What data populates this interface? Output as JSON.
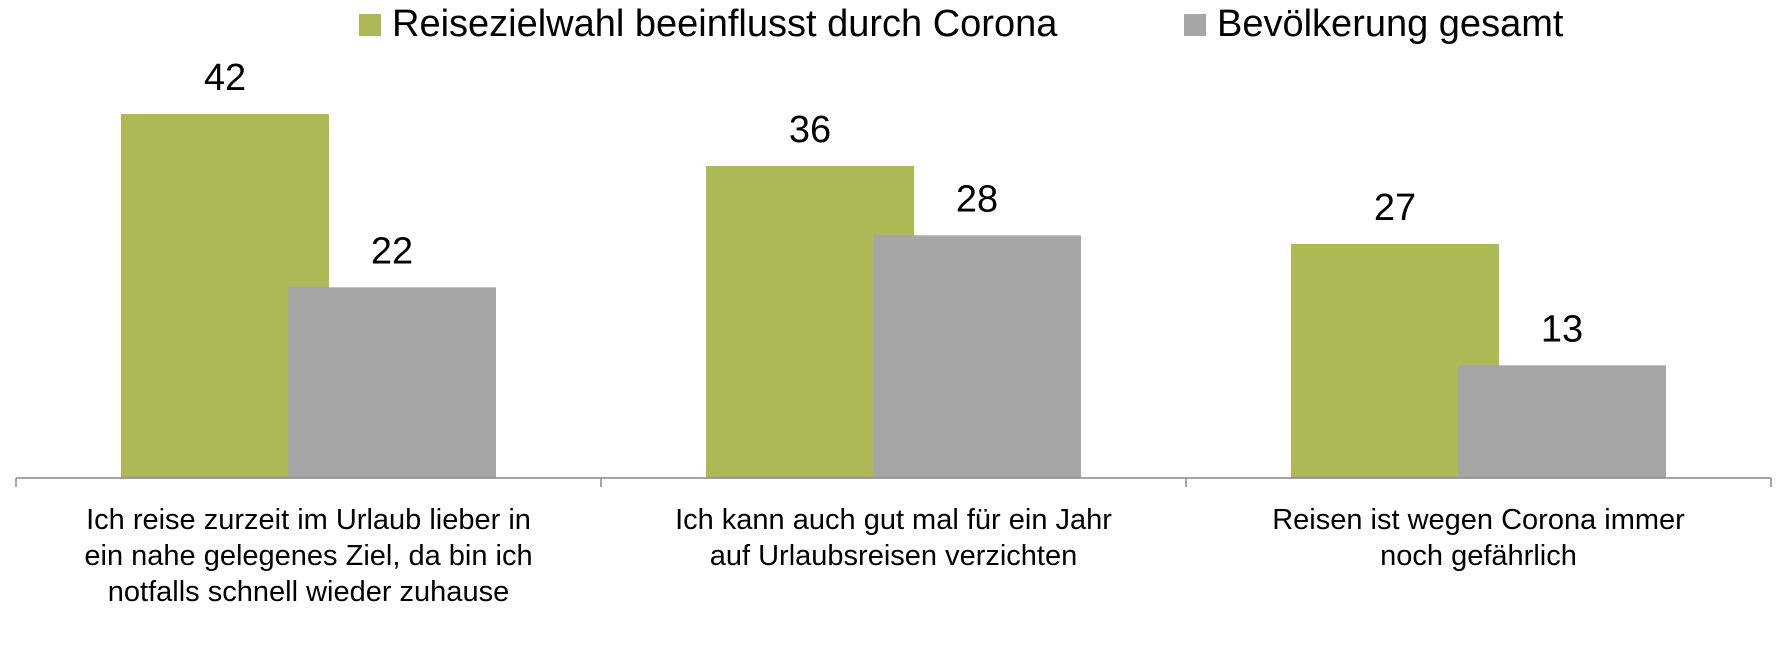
{
  "chart_data": {
    "type": "bar",
    "categories": [
      "Ich reise zurzeit im Urlaub lieber in ein nahe gelegenes Ziel, da bin ich notfalls schnell wieder zuhause",
      "Ich kann auch gut mal für ein Jahr auf Urlaubsreisen verzichten",
      "Reisen ist wegen Corona immer noch gefährlich"
    ],
    "series": [
      {
        "name": "Reisezielwahl beeinflusst durch Corona",
        "color": "#acb954",
        "values": [
          42,
          36,
          27
        ]
      },
      {
        "name": "Bevölkerung gesamt",
        "color": "#a6a6a6",
        "values": [
          22,
          28,
          13
        ]
      }
    ],
    "legend": "top"
  }
}
